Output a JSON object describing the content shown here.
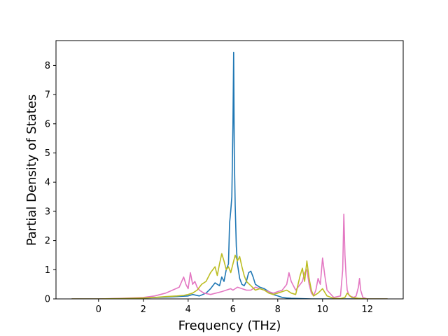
{
  "chart_data": {
    "type": "line",
    "title": "",
    "xlabel": "Frequency (THz)",
    "ylabel": "Partial Density of States",
    "xlim": [
      -1.9,
      13.6
    ],
    "ylim": [
      0,
      8.85
    ],
    "xticks": [
      0,
      2,
      4,
      6,
      8,
      10,
      12
    ],
    "yticks": [
      0,
      1,
      2,
      3,
      4,
      5,
      6,
      7,
      8
    ],
    "grid": false,
    "legend": "none",
    "series": [
      {
        "color": "#1f77b4",
        "x": [
          -1.2,
          0.0,
          1.0,
          2.0,
          3.0,
          3.5,
          4.0,
          4.2,
          4.5,
          4.8,
          5.0,
          5.2,
          5.4,
          5.5,
          5.6,
          5.7,
          5.8,
          5.85,
          5.9,
          5.95,
          6.0,
          6.03,
          6.06,
          6.1,
          6.15,
          6.2,
          6.3,
          6.4,
          6.5,
          6.6,
          6.7,
          6.8,
          6.9,
          7.0,
          7.2,
          7.4,
          7.6,
          7.8,
          8.0,
          8.2,
          8.4,
          8.6,
          9.0,
          9.5,
          10.0,
          10.5,
          11.0,
          12.0,
          12.9
        ],
        "y": [
          0,
          0,
          0.01,
          0.03,
          0.06,
          0.08,
          0.1,
          0.15,
          0.1,
          0.2,
          0.35,
          0.55,
          0.45,
          0.75,
          0.6,
          1.0,
          1.2,
          2.6,
          3.0,
          3.5,
          6.0,
          8.45,
          5.0,
          3.2,
          1.8,
          1.2,
          0.7,
          0.5,
          0.45,
          0.6,
          0.9,
          0.95,
          0.75,
          0.5,
          0.4,
          0.35,
          0.25,
          0.15,
          0.1,
          0.05,
          0.03,
          0.02,
          0.01,
          0,
          0,
          0,
          0,
          0,
          0
        ]
      },
      {
        "color": "#e377c2",
        "x": [
          -1.2,
          0.0,
          1.0,
          2.0,
          2.5,
          3.0,
          3.3,
          3.6,
          3.8,
          3.9,
          4.0,
          4.1,
          4.2,
          4.3,
          4.4,
          4.5,
          4.7,
          5.0,
          5.5,
          5.7,
          5.9,
          6.0,
          6.2,
          6.4,
          6.6,
          6.8,
          7.0,
          7.2,
          7.4,
          7.6,
          7.8,
          8.0,
          8.2,
          8.4,
          8.5,
          8.6,
          8.8,
          9.0,
          9.1,
          9.2,
          9.3,
          9.4,
          9.5,
          9.6,
          9.7,
          9.8,
          9.9,
          10.0,
          10.1,
          10.2,
          10.5,
          10.8,
          10.9,
          10.95,
          11.0,
          11.05,
          11.1,
          11.2,
          11.4,
          11.5,
          11.6,
          11.65,
          11.7,
          11.8,
          12.0,
          12.9
        ],
        "y": [
          0,
          0,
          0.02,
          0.05,
          0.1,
          0.2,
          0.3,
          0.4,
          0.75,
          0.5,
          0.35,
          0.9,
          0.5,
          0.6,
          0.4,
          0.3,
          0.2,
          0.15,
          0.25,
          0.3,
          0.35,
          0.3,
          0.4,
          0.35,
          0.3,
          0.3,
          0.4,
          0.35,
          0.3,
          0.25,
          0.2,
          0.25,
          0.3,
          0.5,
          0.9,
          0.6,
          0.3,
          0.5,
          0.6,
          0.9,
          1.0,
          0.5,
          0.2,
          0.1,
          0.3,
          0.7,
          0.5,
          1.4,
          0.8,
          0.3,
          0.05,
          0.1,
          1.0,
          2.9,
          1.5,
          0.8,
          0.3,
          0.1,
          0.05,
          0.1,
          0.4,
          0.7,
          0.3,
          0.05,
          0,
          0
        ]
      },
      {
        "color": "#bcbd22",
        "x": [
          -1.2,
          0.0,
          1.0,
          2.0,
          2.5,
          3.0,
          3.5,
          3.8,
          4.0,
          4.2,
          4.4,
          4.6,
          4.8,
          5.0,
          5.2,
          5.3,
          5.4,
          5.5,
          5.6,
          5.7,
          5.8,
          5.9,
          6.0,
          6.1,
          6.2,
          6.3,
          6.4,
          6.5,
          6.6,
          6.8,
          7.0,
          7.2,
          7.4,
          7.6,
          7.8,
          8.0,
          8.2,
          8.4,
          8.6,
          8.8,
          9.0,
          9.1,
          9.2,
          9.3,
          9.4,
          9.5,
          9.6,
          9.8,
          10.0,
          10.2,
          10.5,
          10.8,
          11.0,
          11.1,
          11.3,
          11.6,
          12.0,
          12.9
        ],
        "y": [
          0,
          0,
          0.01,
          0.03,
          0.05,
          0.08,
          0.1,
          0.12,
          0.15,
          0.2,
          0.3,
          0.5,
          0.6,
          0.9,
          1.1,
          0.8,
          1.2,
          1.55,
          1.3,
          1.0,
          1.1,
          0.9,
          1.2,
          1.5,
          1.3,
          1.45,
          1.1,
          0.8,
          0.6,
          0.45,
          0.3,
          0.35,
          0.3,
          0.2,
          0.15,
          0.2,
          0.25,
          0.3,
          0.2,
          0.15,
          0.8,
          1.05,
          0.6,
          1.3,
          0.7,
          0.3,
          0.1,
          0.2,
          0.35,
          0.1,
          0.02,
          0.01,
          0.05,
          0.2,
          0.05,
          0.02,
          0,
          0
        ]
      }
    ]
  }
}
